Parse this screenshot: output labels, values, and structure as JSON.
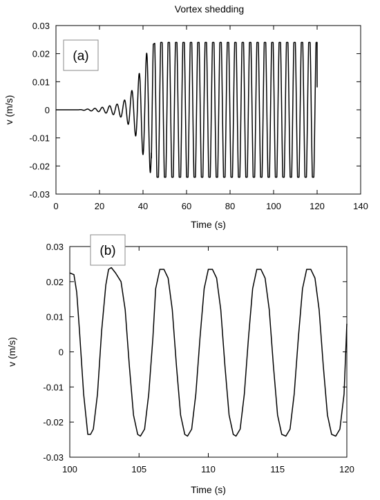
{
  "title": "Vortex shedding",
  "chart_data": [
    {
      "type": "line",
      "panel_label": "(a)",
      "xlabel": "Time (s)",
      "ylabel": "v (m/s)",
      "xlim": [
        0,
        140
      ],
      "ylim": [
        -0.03,
        0.03
      ],
      "xticks": [
        0,
        20,
        40,
        60,
        80,
        100,
        120,
        140
      ],
      "yticks": [
        -0.03,
        -0.02,
        -0.01,
        0,
        0.01,
        0.02,
        0.03
      ],
      "ytick_labels": [
        "-0.03",
        "-0.02",
        "-0.01",
        "0",
        "0.01",
        "0.02",
        "0.03"
      ],
      "grid": false,
      "series": [
        {
          "description_of_signal": "",
          "x_start": 0,
          "x_end": 120,
          "period": 3.4,
          "final_amplitude": 0.024,
          "envelope": [
            [
              0,
              0.0
            ],
            [
              10,
              0.0
            ],
            [
              15,
              0.0003
            ],
            [
              20,
              0.0007
            ],
            [
              25,
              0.0015
            ],
            [
              28,
              0.002
            ],
            [
              31,
              0.003
            ],
            [
              33,
              0.005
            ],
            [
              36,
              0.008
            ],
            [
              38,
              0.0125
            ],
            [
              40,
              0.016
            ],
            [
              42,
              0.021
            ],
            [
              44,
              0.023
            ],
            [
              46,
              0.024
            ],
            [
              120,
              0.024
            ]
          ],
          "end_value": 0.008
        }
      ]
    },
    {
      "type": "line",
      "panel_label": "(b)",
      "xlabel": "Time (s)",
      "ylabel": "v (m/s)",
      "xlim": [
        100,
        120
      ],
      "ylim": [
        -0.03,
        0.03
      ],
      "xticks": [
        100,
        105,
        110,
        115,
        120
      ],
      "yticks": [
        -0.03,
        -0.02,
        -0.01,
        0,
        0.01,
        0.02,
        0.03
      ],
      "ytick_labels": [
        "-0.03",
        "-0.02",
        "-0.01",
        "0",
        "0.01",
        "0.02",
        "0.03"
      ],
      "grid": false,
      "series": [
        {
          "x": [
            100,
            100.3,
            100.5,
            100.7,
            101.0,
            101.3,
            101.5,
            101.7,
            102.0,
            102.3,
            102.6,
            102.8,
            103.0,
            103.3,
            103.7,
            104.0,
            104.3,
            104.6,
            104.9,
            105.1,
            105.4,
            105.7,
            106.0,
            106.2,
            106.5,
            106.8,
            107.1,
            107.4,
            107.7,
            108.0,
            108.3,
            108.5,
            108.8,
            109.1,
            109.4,
            109.7,
            110.0,
            110.3,
            110.6,
            110.9,
            111.2,
            111.5,
            111.8,
            112.0,
            112.3,
            112.6,
            112.9,
            113.2,
            113.5,
            113.8,
            114.1,
            114.4,
            114.7,
            115.0,
            115.3,
            115.6,
            115.9,
            116.2,
            116.5,
            116.8,
            117.1,
            117.4,
            117.7,
            118.0,
            118.3,
            118.6,
            118.9,
            119.2,
            119.5,
            119.8,
            120.0
          ],
          "y": [
            0.0225,
            0.022,
            0.017,
            0.006,
            -0.012,
            -0.0235,
            -0.0235,
            -0.022,
            -0.012,
            0.006,
            0.019,
            0.0235,
            0.024,
            0.0225,
            0.02,
            0.012,
            -0.004,
            -0.018,
            -0.0235,
            -0.024,
            -0.022,
            -0.012,
            0.004,
            0.018,
            0.0235,
            0.0235,
            0.021,
            0.012,
            -0.004,
            -0.018,
            -0.0235,
            -0.024,
            -0.022,
            -0.012,
            0.004,
            0.018,
            0.0235,
            0.0235,
            0.021,
            0.012,
            -0.004,
            -0.018,
            -0.0235,
            -0.024,
            -0.022,
            -0.012,
            0.004,
            0.018,
            0.0235,
            0.0235,
            0.021,
            0.012,
            -0.004,
            -0.018,
            -0.0235,
            -0.024,
            -0.022,
            -0.012,
            0.004,
            0.018,
            0.0235,
            0.0235,
            0.021,
            0.012,
            -0.004,
            -0.018,
            -0.0235,
            -0.024,
            -0.022,
            -0.012,
            0.008
          ]
        }
      ]
    }
  ]
}
